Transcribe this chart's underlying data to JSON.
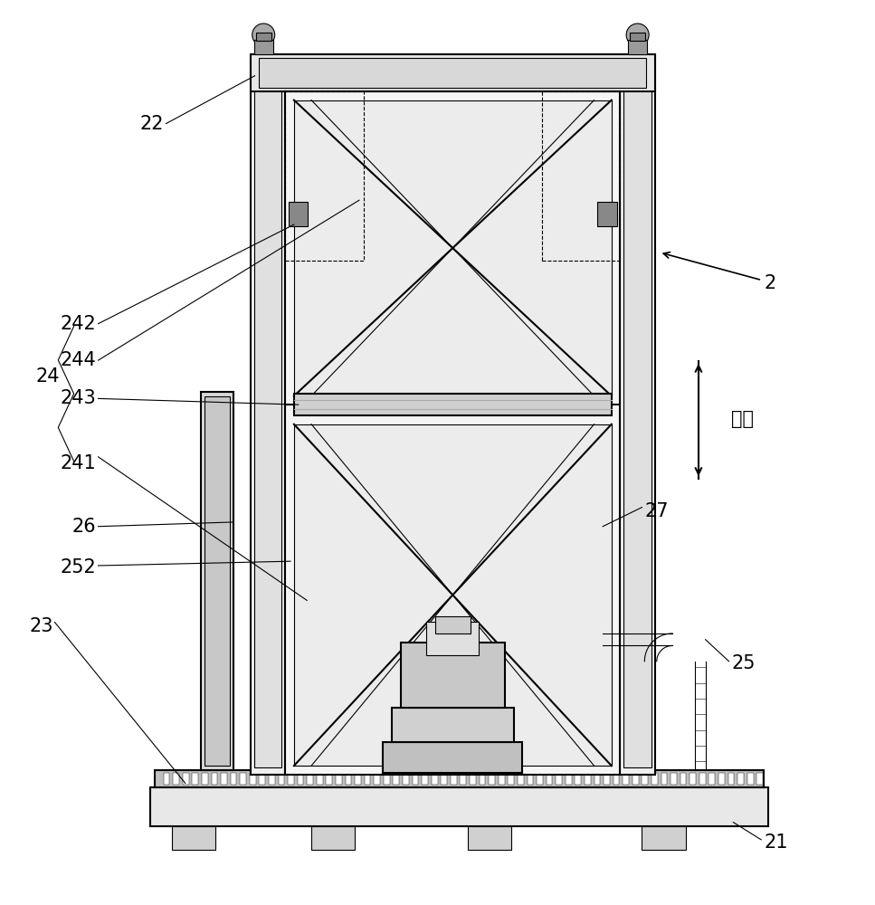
{
  "bg_color": "#ffffff",
  "line_color": "#000000",
  "gray_color": "#888888",
  "light_gray": "#cccccc",
  "dark_gray": "#444444"
}
